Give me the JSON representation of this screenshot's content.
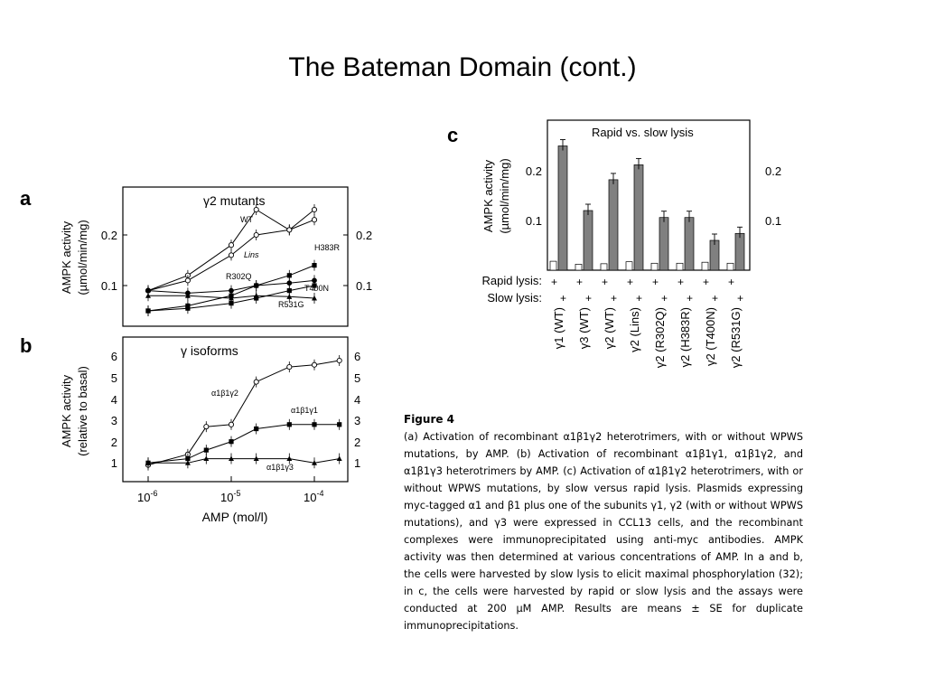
{
  "slide": {
    "title": "The Bateman Domain (cont.)"
  },
  "figure_panels": {
    "a": {
      "letter": "a",
      "title": "γ2 mutants",
      "ylabel_line1": "AMPK activity",
      "ylabel_line2": "(µmol/min/mg)",
      "y_ticks": [
        "0.2",
        "0.1"
      ],
      "series_labels": [
        "WT",
        "Lins",
        "H383R",
        "R302Q",
        "T400N",
        "R531G"
      ]
    },
    "b": {
      "letter": "b",
      "title": "γ isoforms",
      "ylabel_line1": "AMPK activity",
      "ylabel_line2": "(relative to basal)",
      "y_ticks": [
        "6",
        "5",
        "4",
        "3",
        "2",
        "1"
      ],
      "series_labels": [
        "α1β1γ2",
        "α1β1γ1",
        "α1β1γ3"
      ],
      "x_ticks": [
        "10-6",
        "10-5",
        "10-4"
      ],
      "xlabel": "AMP (mol/l)"
    },
    "c": {
      "letter": "c",
      "title": "Rapid vs. slow lysis",
      "ylabel_line1": "AMPK activity",
      "ylabel_line2": "(µmol/min/mg)",
      "y_ticks": [
        "0.2",
        "0.1"
      ],
      "y_ticks_right": [
        "0.2",
        "0.1"
      ],
      "row_labels": [
        "Rapid lysis:",
        "Slow lysis:"
      ],
      "plus": "+",
      "categories": [
        "γ1 (WT)",
        "γ3 (WT)",
        "γ2 (WT)",
        "γ2 (Lins)",
        "γ2 (R302Q)",
        "γ2 (H383R)",
        "γ2 (T400N)",
        "γ2 (R531G)"
      ]
    }
  },
  "chart_data": [
    {
      "type": "scatter",
      "panel": "a",
      "title": "γ2 mutants",
      "xlabel": "AMP (mol/l)",
      "ylabel": "AMPK activity (µmol/min/mg)",
      "x_scale": "log",
      "xlim": [
        4e-07,
        0.00025
      ],
      "ylim": [
        0.03,
        0.28
      ],
      "series": [
        {
          "name": "WT",
          "x": [
            1e-06,
            3e-06,
            1e-05,
            2e-05,
            5e-05,
            0.0001
          ],
          "y": [
            0.09,
            0.12,
            0.18,
            0.25,
            0.21,
            0.25
          ]
        },
        {
          "name": "Lins",
          "x": [
            1e-06,
            3e-06,
            1e-05,
            2e-05,
            5e-05,
            0.0001
          ],
          "y": [
            0.09,
            0.11,
            0.16,
            0.2,
            0.21,
            0.23
          ]
        },
        {
          "name": "H383R",
          "x": [
            1e-06,
            3e-06,
            1e-05,
            2e-05,
            5e-05,
            0.0001
          ],
          "y": [
            0.05,
            0.06,
            0.08,
            0.1,
            0.12,
            0.14
          ]
        },
        {
          "name": "R302Q",
          "x": [
            1e-06,
            3e-06,
            1e-05,
            2e-05,
            5e-05,
            0.0001
          ],
          "y": [
            0.09,
            0.085,
            0.09,
            0.1,
            0.105,
            0.11
          ]
        },
        {
          "name": "T400N",
          "x": [
            1e-06,
            3e-06,
            1e-05,
            2e-05,
            5e-05,
            0.0001
          ],
          "y": [
            0.05,
            0.055,
            0.065,
            0.075,
            0.09,
            0.1
          ]
        },
        {
          "name": "R531G",
          "x": [
            1e-06,
            3e-06,
            1e-05,
            2e-05,
            5e-05,
            0.0001
          ],
          "y": [
            0.08,
            0.08,
            0.075,
            0.08,
            0.078,
            0.075
          ]
        }
      ]
    },
    {
      "type": "scatter",
      "panel": "b",
      "title": "γ isoforms",
      "xlabel": "AMP (mol/l)",
      "ylabel": "AMPK activity (relative to basal)",
      "x_scale": "log",
      "xlim": [
        4e-07,
        0.00025
      ],
      "ylim": [
        0.5,
        6.5
      ],
      "series": [
        {
          "name": "α1β1γ2",
          "x": [
            1e-06,
            3e-06,
            5e-06,
            1e-05,
            2e-05,
            5e-05,
            0.0001,
            0.0002
          ],
          "y": [
            1.1,
            1.6,
            2.9,
            3.0,
            5.0,
            5.7,
            5.8,
            6.0
          ]
        },
        {
          "name": "α1β1γ1",
          "x": [
            1e-06,
            3e-06,
            5e-06,
            1e-05,
            2e-05,
            5e-05,
            0.0001,
            0.0002
          ],
          "y": [
            1.2,
            1.4,
            1.8,
            2.2,
            2.8,
            3.0,
            3.0,
            3.0
          ]
        },
        {
          "name": "α1β1γ3",
          "x": [
            1e-06,
            3e-06,
            5e-06,
            1e-05,
            2e-05,
            5e-05,
            0.0001,
            0.0002
          ],
          "y": [
            1.2,
            1.2,
            1.4,
            1.4,
            1.4,
            1.4,
            1.2,
            1.4
          ]
        }
      ]
    },
    {
      "type": "bar",
      "panel": "c",
      "title": "Rapid vs. slow lysis",
      "ylabel": "AMPK activity (µmol/min/mg)",
      "ylim": [
        0,
        0.31
      ],
      "categories": [
        "γ1 (WT)",
        "γ3 (WT)",
        "γ2 (WT)",
        "γ2 (Lins)",
        "γ2 (R302Q)",
        "γ2 (H383R)",
        "γ2 (T400N)",
        "γ2 (R531G)"
      ],
      "series": [
        {
          "name": "Rapid lysis",
          "values": [
            0.018,
            0.012,
            0.013,
            0.017,
            0.014,
            0.014,
            0.016,
            0.014
          ]
        },
        {
          "name": "Slow lysis",
          "values": [
            0.25,
            0.12,
            0.182,
            0.212,
            0.106,
            0.106,
            0.06,
            0.074
          ]
        }
      ]
    }
  ],
  "caption": {
    "title": "Figure 4",
    "text": "(a) Activation of recombinant α1β1γ2 heterotrimers, with or without WPWS mutations, by AMP. (b) Activation of recombinant α1β1γ1, α1β1γ2, and α1β1γ3 heterotrimers by AMP. (c) Activation of α1β1γ2 heterotrimers, with or without WPWS mutations, by slow versus rapid lysis. Plasmids expressing myc-tagged α1 and β1 plus one of the subunits γ1, γ2 (with or without WPWS mutations), and γ3 were expressed in CCL13 cells, and the recombinant complexes were immunoprecipitated using anti-myc antibodies. AMPK activity was then determined at various concentrations of AMP. In a and b, the cells were harvested by slow lysis to elicit maximal phosphorylation (32); in c, the cells were harvested by rapid or slow lysis and the assays were conducted at 200 µM AMP. Results are means ± SE for duplicate immunoprecipitations."
  }
}
